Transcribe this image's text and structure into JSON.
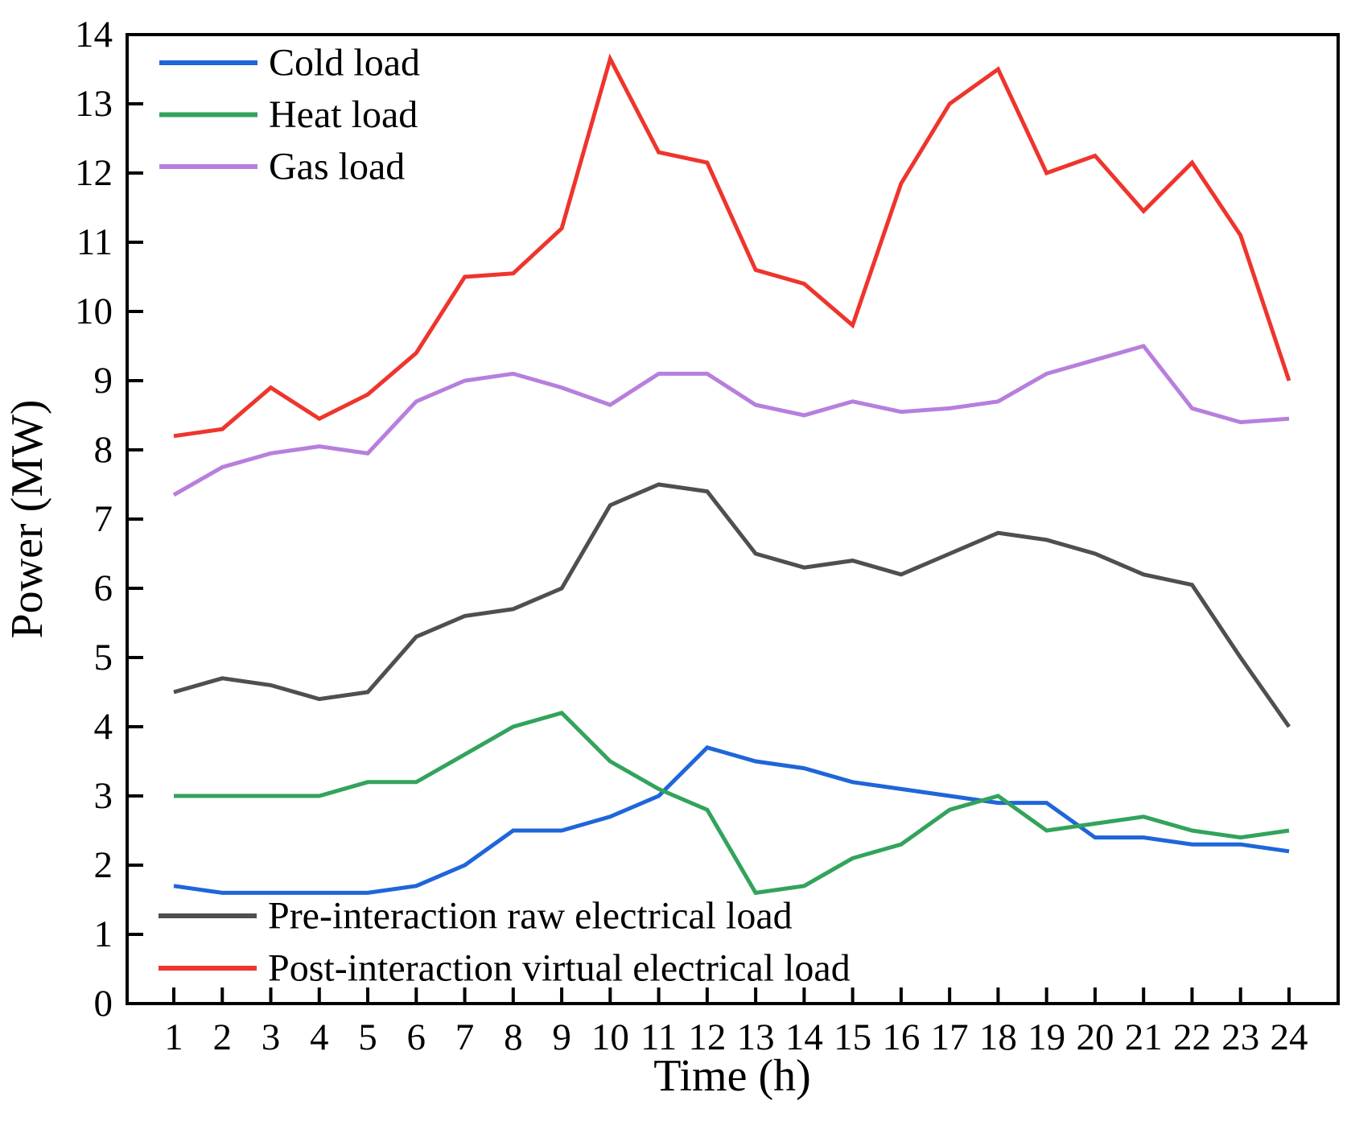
{
  "chart_data": {
    "type": "line",
    "title": "",
    "xlabel": "Time (h)",
    "ylabel": "Power (MW)",
    "x": [
      1,
      2,
      3,
      4,
      5,
      6,
      7,
      8,
      9,
      10,
      11,
      12,
      13,
      14,
      15,
      16,
      17,
      18,
      19,
      20,
      21,
      22,
      23,
      24
    ],
    "xticks": [
      1,
      2,
      3,
      4,
      5,
      6,
      7,
      8,
      9,
      10,
      11,
      12,
      13,
      14,
      15,
      16,
      17,
      18,
      19,
      20,
      21,
      22,
      23,
      24
    ],
    "yticks": [
      0,
      1,
      2,
      3,
      4,
      5,
      6,
      7,
      8,
      9,
      10,
      11,
      12,
      13,
      14
    ],
    "xlim": [
      0,
      25
    ],
    "ylim": [
      0,
      14
    ],
    "grid": false,
    "legend_top_position": "upper-left-inside",
    "legend_bottom_position": "lower-left-inside",
    "legend_top": [
      "Cold load",
      "Heat load",
      "Gas load"
    ],
    "legend_bottom": [
      "Pre-interaction raw electrical load",
      "Post-interaction virtual electrical load"
    ],
    "series": [
      {
        "name": "Cold load",
        "color": "#1e66d9",
        "values": [
          1.7,
          1.6,
          1.6,
          1.6,
          1.6,
          1.7,
          2.0,
          2.5,
          2.5,
          2.7,
          3.0,
          3.7,
          3.5,
          3.4,
          3.2,
          3.1,
          3.0,
          2.9,
          2.9,
          2.4,
          2.4,
          2.3,
          2.3,
          2.2
        ]
      },
      {
        "name": "Heat load",
        "color": "#33a35c",
        "values": [
          3.0,
          3.0,
          3.0,
          3.0,
          3.2,
          3.2,
          3.6,
          4.0,
          4.2,
          3.5,
          3.1,
          2.8,
          1.6,
          1.7,
          2.1,
          2.3,
          2.8,
          3.0,
          2.5,
          2.6,
          2.7,
          2.5,
          2.4,
          2.5
        ]
      },
      {
        "name": "Gas load",
        "color": "#b77fdd",
        "values": [
          7.35,
          7.75,
          7.95,
          8.05,
          7.95,
          8.7,
          9.0,
          9.1,
          8.9,
          8.65,
          9.1,
          9.1,
          8.65,
          8.5,
          8.7,
          8.55,
          8.6,
          8.7,
          9.1,
          9.3,
          9.5,
          8.6,
          8.4,
          8.45
        ]
      },
      {
        "name": "Pre-interaction raw electrical load",
        "color": "#4f4f4f",
        "values": [
          4.5,
          4.7,
          4.6,
          4.4,
          4.5,
          5.3,
          5.6,
          5.7,
          6.0,
          7.2,
          7.5,
          7.4,
          6.5,
          6.3,
          6.4,
          6.2,
          6.5,
          6.8,
          6.7,
          6.5,
          6.2,
          6.05,
          5.0,
          4.0
        ]
      },
      {
        "name": "Post-interaction virtual electrical load",
        "color": "#ee352d",
        "values": [
          8.2,
          8.3,
          8.9,
          8.45,
          8.8,
          9.4,
          10.5,
          10.55,
          11.2,
          13.65,
          12.3,
          12.15,
          10.6,
          10.4,
          9.8,
          11.85,
          13.0,
          13.5,
          12.0,
          12.25,
          11.45,
          12.15,
          11.1,
          9.0
        ]
      }
    ]
  }
}
